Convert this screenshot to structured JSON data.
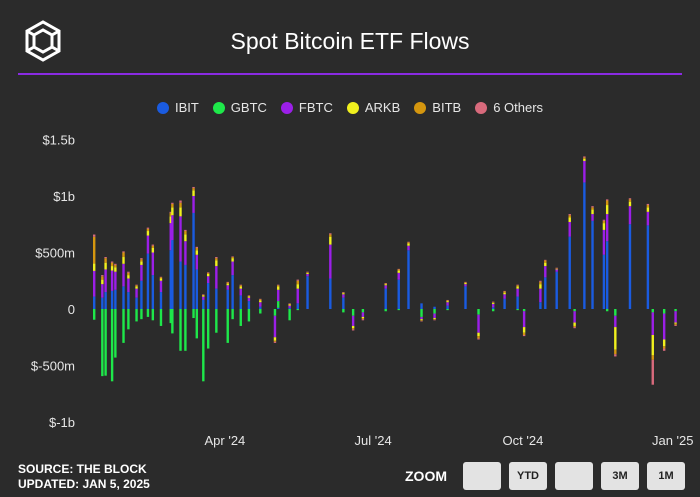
{
  "header": {
    "title": "Spot Bitcoin ETF Flows"
  },
  "footer": {
    "source": "SOURCE: THE BLOCK",
    "updated": "UPDATED: JAN 5, 2025"
  },
  "zoom": {
    "label": "ZOOM",
    "buttons": [
      {
        "label": ""
      },
      {
        "label": "YTD"
      },
      {
        "label": ""
      },
      {
        "label": "3M"
      },
      {
        "label": "1M"
      }
    ]
  },
  "colors": {
    "IBIT": "#1a5be0",
    "GBTC": "#1ee84a",
    "FBTC": "#9b1fe8",
    "ARKB": "#f0f01e",
    "BITB": "#d4960f",
    "6 Others": "#d86a7c",
    "accent": "#8a2be2",
    "background": "#2b2b2b"
  },
  "chart_data": {
    "type": "bar",
    "stacked": true,
    "title": "Spot Bitcoin ETF Flows",
    "legend_position": "top-center",
    "grid": false,
    "ylim": [
      -1000,
      1500
    ],
    "y_unit": "millions USD",
    "y_ticks": [
      "$1.5b",
      "$1b",
      "$500m",
      "0",
      "$-500m",
      "$-1b"
    ],
    "y_tick_values": [
      1500,
      1000,
      500,
      0,
      -500,
      -1000
    ],
    "x_tick_labels": [
      "Apr '24",
      "Jul '24",
      "Oct '24",
      "Jan '25"
    ],
    "x_tick_dates": [
      "2024-04-01",
      "2024-07-01",
      "2024-10-01",
      "2025-01-01"
    ],
    "x_range": [
      "2024-01-11",
      "2025-01-03"
    ],
    "series": [
      {
        "name": "IBIT"
      },
      {
        "name": "GBTC"
      },
      {
        "name": "FBTC"
      },
      {
        "name": "ARKB"
      },
      {
        "name": "BITB"
      },
      {
        "name": "6 Others"
      }
    ],
    "points": [
      {
        "date": "2024-01-11",
        "IBIT": 110,
        "GBTC": -95,
        "FBTC": 227,
        "ARKB": 65,
        "BITB": 237,
        "6 Others": 20
      },
      {
        "date": "2024-01-16",
        "IBIT": 100,
        "GBTC": -594,
        "FBTC": 120,
        "ARKB": 40,
        "BITB": 30,
        "6 Others": 10
      },
      {
        "date": "2024-01-18",
        "IBIT": 150,
        "GBTC": -590,
        "FBTC": 200,
        "ARKB": 60,
        "BITB": 40,
        "6 Others": 10
      },
      {
        "date": "2024-01-22",
        "IBIT": 160,
        "GBTC": -640,
        "FBTC": 180,
        "ARKB": 40,
        "BITB": 30,
        "6 Others": 10
      },
      {
        "date": "2024-01-24",
        "IBIT": 170,
        "GBTC": -430,
        "FBTC": 160,
        "ARKB": 40,
        "BITB": 20,
        "6 Others": 10
      },
      {
        "date": "2024-01-29",
        "IBIT": 200,
        "GBTC": -300,
        "FBTC": 200,
        "ARKB": 60,
        "BITB": 40,
        "6 Others": 10
      },
      {
        "date": "2024-02-01",
        "IBIT": 150,
        "GBTC": -180,
        "FBTC": 120,
        "ARKB": 30,
        "BITB": 20,
        "6 Others": 10
      },
      {
        "date": "2024-02-06",
        "IBIT": 100,
        "GBTC": -110,
        "FBTC": 80,
        "ARKB": 20,
        "BITB": 10,
        "6 Others": 5
      },
      {
        "date": "2024-02-09",
        "IBIT": 250,
        "GBTC": -90,
        "FBTC": 140,
        "ARKB": 30,
        "BITB": 20,
        "6 Others": 10
      },
      {
        "date": "2024-02-13",
        "IBIT": 490,
        "GBTC": -70,
        "FBTC": 160,
        "ARKB": 40,
        "BITB": 20,
        "6 Others": 10
      },
      {
        "date": "2024-02-16",
        "IBIT": 300,
        "GBTC": -100,
        "FBTC": 200,
        "ARKB": 40,
        "BITB": 20,
        "6 Others": 10
      },
      {
        "date": "2024-02-21",
        "IBIT": 150,
        "GBTC": -150,
        "FBTC": 100,
        "ARKB": 20,
        "BITB": 10,
        "6 Others": 5
      },
      {
        "date": "2024-02-27",
        "IBIT": 520,
        "GBTC": -125,
        "FBTC": 240,
        "ARKB": 60,
        "BITB": 30,
        "6 Others": 10
      },
      {
        "date": "2024-02-28",
        "IBIT": 610,
        "GBTC": -216,
        "FBTC": 220,
        "ARKB": 70,
        "BITB": 30,
        "6 Others": 10
      },
      {
        "date": "2024-03-04",
        "IBIT": 420,
        "GBTC": -370,
        "FBTC": 400,
        "ARKB": 80,
        "BITB": 40,
        "6 Others": 20
      },
      {
        "date": "2024-03-07",
        "IBIT": 390,
        "GBTC": -370,
        "FBTC": 210,
        "ARKB": 60,
        "BITB": 30,
        "6 Others": 10
      },
      {
        "date": "2024-03-12",
        "IBIT": 850,
        "GBTC": -80,
        "FBTC": 150,
        "ARKB": 50,
        "BITB": 20,
        "6 Others": 10
      },
      {
        "date": "2024-03-14",
        "IBIT": 350,
        "GBTC": -260,
        "FBTC": 130,
        "ARKB": 40,
        "BITB": 20,
        "6 Others": 10
      },
      {
        "date": "2024-03-18",
        "IBIT": 80,
        "GBTC": -640,
        "FBTC": 30,
        "ARKB": 10,
        "BITB": 5,
        "6 Others": 5
      },
      {
        "date": "2024-03-21",
        "IBIT": 230,
        "GBTC": -350,
        "FBTC": 60,
        "ARKB": 20,
        "BITB": 10,
        "6 Others": 5
      },
      {
        "date": "2024-03-26",
        "IBIT": 180,
        "GBTC": -210,
        "FBTC": 200,
        "ARKB": 50,
        "BITB": 20,
        "6 Others": 10
      },
      {
        "date": "2024-04-02",
        "IBIT": 170,
        "GBTC": -300,
        "FBTC": 40,
        "ARKB": 15,
        "BITB": 10,
        "6 Others": 5
      },
      {
        "date": "2024-04-05",
        "IBIT": 300,
        "GBTC": -90,
        "FBTC": 120,
        "ARKB": 30,
        "BITB": 10,
        "6 Others": 5
      },
      {
        "date": "2024-04-10",
        "IBIT": 120,
        "GBTC": -150,
        "FBTC": 60,
        "ARKB": 20,
        "BITB": 10,
        "6 Others": 5
      },
      {
        "date": "2024-04-15",
        "IBIT": 70,
        "GBTC": -110,
        "FBTC": 30,
        "ARKB": 10,
        "BITB": 5,
        "6 Others": 5
      },
      {
        "date": "2024-04-22",
        "IBIT": 20,
        "GBTC": -40,
        "FBTC": 40,
        "ARKB": 15,
        "BITB": 10,
        "6 Others": 5
      },
      {
        "date": "2024-05-01",
        "IBIT": 0,
        "GBTC": -60,
        "FBTC": -190,
        "ARKB": -30,
        "BITB": -10,
        "6 Others": -10
      },
      {
        "date": "2024-05-03",
        "IBIT": 10,
        "GBTC": 60,
        "FBTC": 100,
        "ARKB": 30,
        "BITB": 10,
        "6 Others": 5
      },
      {
        "date": "2024-05-10",
        "IBIT": 10,
        "GBTC": -100,
        "FBTC": 20,
        "ARKB": 10,
        "BITB": 5,
        "6 Others": 5
      },
      {
        "date": "2024-05-15",
        "IBIT": 50,
        "GBTC": -10,
        "FBTC": 130,
        "ARKB": 40,
        "BITB": 30,
        "6 Others": 10
      },
      {
        "date": "2024-05-21",
        "IBIT": 290,
        "GBTC": 0,
        "FBTC": 20,
        "ARKB": 10,
        "BITB": 5,
        "6 Others": 5
      },
      {
        "date": "2024-06-04",
        "IBIT": 270,
        "GBTC": 0,
        "FBTC": 300,
        "ARKB": 70,
        "BITB": 20,
        "6 Others": 10
      },
      {
        "date": "2024-06-12",
        "IBIT": 100,
        "GBTC": -30,
        "FBTC": 30,
        "ARKB": 10,
        "BITB": 5,
        "6 Others": 5
      },
      {
        "date": "2024-06-18",
        "IBIT": 0,
        "GBTC": -60,
        "FBTC": -90,
        "ARKB": -20,
        "BITB": -10,
        "6 Others": -10
      },
      {
        "date": "2024-06-24",
        "IBIT": 0,
        "GBTC": -30,
        "FBTC": -40,
        "ARKB": -10,
        "BITB": -10,
        "6 Others": -10
      },
      {
        "date": "2024-07-08",
        "IBIT": 180,
        "GBTC": -20,
        "FBTC": 30,
        "ARKB": 10,
        "BITB": 5,
        "6 Others": 5
      },
      {
        "date": "2024-07-16",
        "IBIT": 260,
        "GBTC": -10,
        "FBTC": 60,
        "ARKB": 20,
        "BITB": 10,
        "6 Others": 5
      },
      {
        "date": "2024-07-22",
        "IBIT": 520,
        "GBTC": 0,
        "FBTC": 40,
        "ARKB": 20,
        "BITB": 10,
        "6 Others": 5
      },
      {
        "date": "2024-07-30",
        "IBIT": 50,
        "GBTC": -70,
        "FBTC": -20,
        "ARKB": -10,
        "BITB": -5,
        "6 Others": -5
      },
      {
        "date": "2024-08-07",
        "IBIT": 20,
        "GBTC": -40,
        "FBTC": -40,
        "ARKB": -10,
        "BITB": -5,
        "6 Others": -5
      },
      {
        "date": "2024-08-15",
        "IBIT": 30,
        "GBTC": -10,
        "FBTC": 30,
        "ARKB": 10,
        "BITB": 5,
        "6 Others": 5
      },
      {
        "date": "2024-08-26",
        "IBIT": 200,
        "GBTC": 0,
        "FBTC": 20,
        "ARKB": 10,
        "BITB": 5,
        "6 Others": 5
      },
      {
        "date": "2024-09-03",
        "IBIT": 0,
        "GBTC": -50,
        "FBTC": -160,
        "ARKB": -30,
        "BITB": -20,
        "6 Others": -10
      },
      {
        "date": "2024-09-12",
        "IBIT": 15,
        "GBTC": -20,
        "FBTC": 30,
        "ARKB": 10,
        "BITB": 5,
        "6 Others": 5
      },
      {
        "date": "2024-09-19",
        "IBIT": 90,
        "GBTC": 0,
        "FBTC": 40,
        "ARKB": 15,
        "BITB": 10,
        "6 Others": 5
      },
      {
        "date": "2024-09-27",
        "IBIT": 110,
        "GBTC": -10,
        "FBTC": 70,
        "ARKB": 20,
        "BITB": 10,
        "6 Others": 5
      },
      {
        "date": "2024-10-01",
        "IBIT": 0,
        "GBTC": -20,
        "FBTC": -140,
        "ARKB": -50,
        "BITB": -20,
        "6 Others": -10
      },
      {
        "date": "2024-10-11",
        "IBIT": 60,
        "GBTC": 0,
        "FBTC": 120,
        "ARKB": 40,
        "BITB": 20,
        "6 Others": 10
      },
      {
        "date": "2024-10-14",
        "IBIT": 280,
        "GBTC": 0,
        "FBTC": 100,
        "ARKB": 30,
        "BITB": 20,
        "6 Others": 5
      },
      {
        "date": "2024-10-21",
        "IBIT": 330,
        "GBTC": 0,
        "FBTC": 20,
        "ARKB": 5,
        "BITB": 5,
        "6 Others": 5
      },
      {
        "date": "2024-10-29",
        "IBIT": 640,
        "GBTC": 0,
        "FBTC": 130,
        "ARKB": 40,
        "BITB": 20,
        "6 Others": 10
      },
      {
        "date": "2024-11-01",
        "IBIT": 0,
        "GBTC": -20,
        "FBTC": -100,
        "ARKB": -30,
        "BITB": -10,
        "6 Others": -10
      },
      {
        "date": "2024-11-07",
        "IBIT": 1120,
        "GBTC": 0,
        "FBTC": 190,
        "ARKB": 20,
        "BITB": 10,
        "6 Others": 10
      },
      {
        "date": "2024-11-12",
        "IBIT": 780,
        "GBTC": 0,
        "FBTC": 60,
        "ARKB": 40,
        "BITB": 20,
        "6 Others": 10
      },
      {
        "date": "2024-11-19",
        "IBIT": 480,
        "GBTC": 0,
        "FBTC": 220,
        "ARKB": 60,
        "BITB": 20,
        "6 Others": 10
      },
      {
        "date": "2024-11-21",
        "IBIT": 600,
        "GBTC": -20,
        "FBTC": 240,
        "ARKB": 80,
        "BITB": 40,
        "6 Others": 10
      },
      {
        "date": "2024-11-26",
        "IBIT": 0,
        "GBTC": -60,
        "FBTC": -100,
        "ARKB": -200,
        "BITB": -40,
        "6 Others": -20
      },
      {
        "date": "2024-12-05",
        "IBIT": 750,
        "GBTC": 0,
        "FBTC": 160,
        "ARKB": 40,
        "BITB": 20,
        "6 Others": 10
      },
      {
        "date": "2024-12-16",
        "IBIT": 740,
        "GBTC": 0,
        "FBTC": 120,
        "ARKB": 40,
        "BITB": 20,
        "6 Others": 10
      },
      {
        "date": "2024-12-19",
        "IBIT": 0,
        "GBTC": -30,
        "FBTC": -200,
        "ARKB": -180,
        "BITB": -40,
        "6 Others": -220
      },
      {
        "date": "2024-12-26",
        "IBIT": 0,
        "GBTC": -40,
        "FBTC": -230,
        "ARKB": -60,
        "BITB": -20,
        "6 Others": -20
      },
      {
        "date": "2025-01-02",
        "IBIT": 0,
        "GBTC": -20,
        "FBTC": -100,
        "ARKB": -10,
        "BITB": -10,
        "6 Others": -10
      }
    ]
  }
}
